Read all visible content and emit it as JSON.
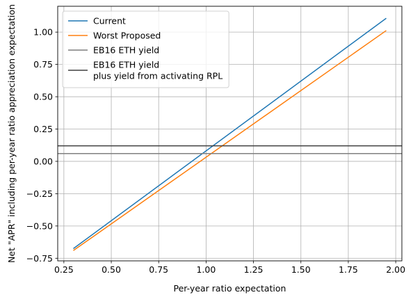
{
  "chart_data": {
    "type": "line",
    "title": "",
    "xlabel": "Per-year ratio expectation",
    "ylabel": "Net \"APR\" including per-year ratio appreciation expectation",
    "xlim": [
      0.2175,
      2.0325
    ],
    "ylim": [
      -0.77,
      1.2
    ],
    "xticks": [
      0.25,
      0.5,
      0.75,
      1.0,
      1.25,
      1.5,
      1.75,
      2.0
    ],
    "xtick_labels": [
      "0.25",
      "0.50",
      "0.75",
      "1.00",
      "1.25",
      "1.50",
      "1.75",
      "2.00"
    ],
    "yticks": [
      -0.75,
      -0.5,
      -0.25,
      0.0,
      0.25,
      0.5,
      0.75,
      1.0
    ],
    "ytick_labels": [
      "−0.75",
      "−0.50",
      "−0.25",
      "0.00",
      "0.25",
      "0.50",
      "0.75",
      "1.00"
    ],
    "grid": true,
    "legend_position": "upper-left",
    "series": [
      {
        "name": "Current",
        "kind": "line",
        "color": "#1f77b4",
        "x": [
          0.3,
          1.95
        ],
        "y": [
          -0.675,
          1.107
        ]
      },
      {
        "name": "Worst Proposed",
        "kind": "line",
        "color": "#ff7f0e",
        "x": [
          0.3,
          1.95
        ],
        "y": [
          -0.69,
          1.012
        ]
      },
      {
        "name": "EB16 ETH yield",
        "kind": "hline",
        "color": "#7f7f7f",
        "y": 0.06
      },
      {
        "name": "EB16 ETH yield\nplus yield from activating RPL",
        "kind": "hline",
        "color": "#404040",
        "y": 0.12
      }
    ]
  }
}
